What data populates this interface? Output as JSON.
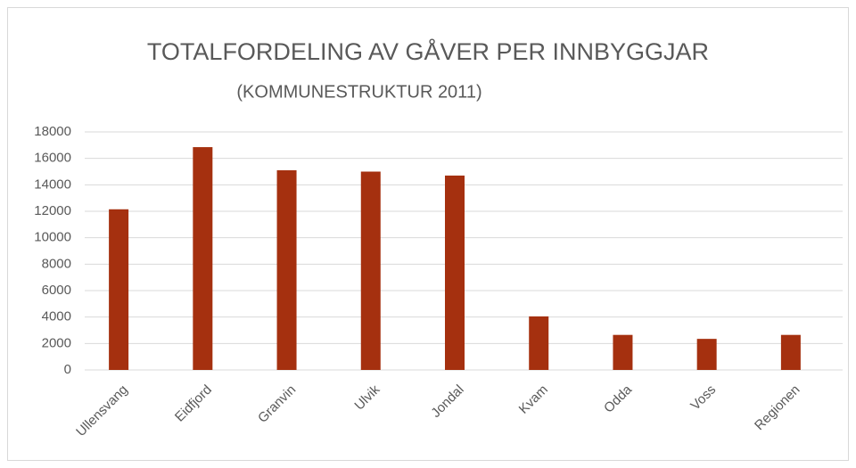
{
  "chart_data": {
    "type": "bar",
    "title": "TOTALFORDELING AV GÅVER PER INNBYGGJAR",
    "subtitle": "(KOMMUNESTRUKTUR 2011)",
    "categories": [
      "Ullensvang",
      "Eidfjord",
      "Granvin",
      "Ulvik",
      "Jondal",
      "Kvam",
      "Odda",
      "Voss",
      "Regionen"
    ],
    "values": [
      12150,
      16850,
      15100,
      15000,
      14700,
      4050,
      2650,
      2350,
      2650
    ],
    "color": "#a5300f",
    "ylim": [
      0,
      18000
    ],
    "yticks": [
      0,
      2000,
      4000,
      6000,
      8000,
      10000,
      12000,
      14000,
      16000,
      18000
    ],
    "grid": true
  }
}
